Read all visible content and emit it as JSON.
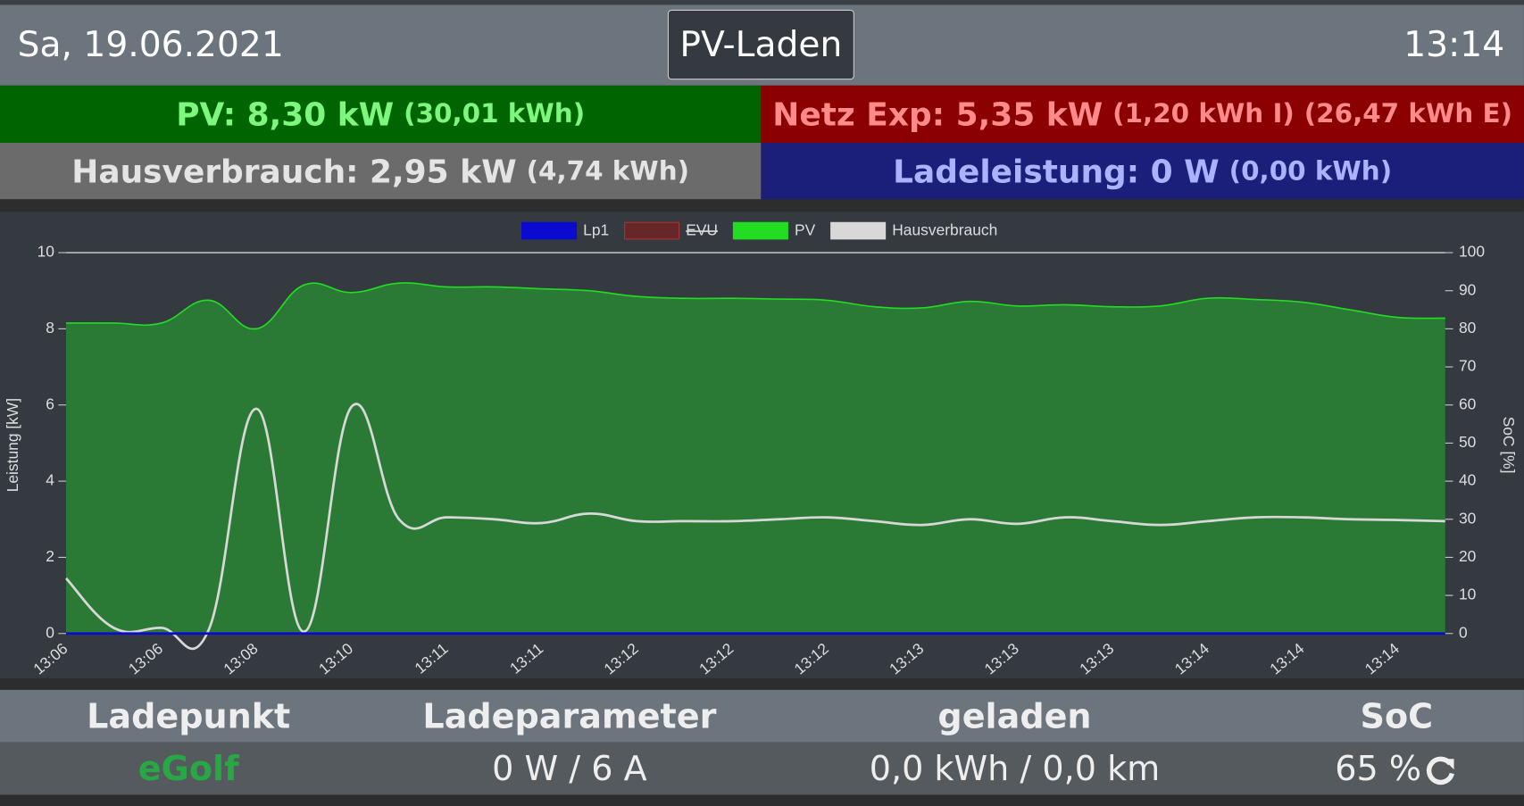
{
  "header": {
    "date": "Sa, 19.06.2021",
    "mode": "PV-Laden",
    "time": "13:14"
  },
  "tiles": {
    "pv": {
      "main": "PV: 8,30 kW",
      "details": [
        "(30,01 kWh)"
      ]
    },
    "grid": {
      "main": "Netz Exp: 5,35 kW",
      "details": [
        "(1,20 kWh I)",
        "(26,47 kWh E)"
      ]
    },
    "house": {
      "main": "Hausverbrauch: 2,95 kW",
      "details": [
        "(4,74 kWh)"
      ]
    },
    "charge": {
      "main": "Ladeleistung: 0 W",
      "details": [
        "(0,00 kWh)"
      ]
    }
  },
  "chart_data": {
    "type": "line",
    "y_label": "Leistung [kW]",
    "y2_label": "SoC [%]",
    "categories": [
      "13:06",
      null,
      "13:06",
      null,
      "13:08",
      null,
      "13:10",
      null,
      "13:11",
      null,
      "13:11",
      null,
      "13:12",
      null,
      "13:12",
      null,
      "13:12",
      null,
      "13:13",
      null,
      "13:13",
      null,
      "13:13",
      null,
      "13:14",
      null,
      "13:14",
      null,
      "13:14",
      null
    ],
    "series": [
      {
        "name": "Lp1",
        "color": "#0a0ad0",
        "values": [
          0,
          0,
          0,
          0,
          0,
          0,
          0,
          0,
          0,
          0,
          0,
          0,
          0,
          0,
          0,
          0,
          0,
          0,
          0,
          0,
          0,
          0,
          0,
          0,
          0,
          0,
          0,
          0,
          0,
          0
        ]
      },
      {
        "name": "EVU",
        "color": "#8b1a1a",
        "hidden": true
      },
      {
        "name": "PV",
        "color": "#22dd22",
        "fill_color": "#2a7a36",
        "values": [
          8.15,
          8.15,
          8.15,
          8.75,
          8.0,
          9.15,
          8.95,
          9.2,
          9.1,
          9.1,
          9.05,
          9.0,
          8.85,
          8.8,
          8.8,
          8.78,
          8.75,
          8.58,
          8.55,
          8.72,
          8.6,
          8.63,
          8.58,
          8.6,
          8.8,
          8.77,
          8.7,
          8.5,
          8.3,
          8.28
        ]
      },
      {
        "name": "Hausverbrauch",
        "color": "#d8d8d8",
        "values": [
          1.45,
          0.15,
          0.15,
          0.1,
          5.9,
          0.05,
          5.95,
          3.0,
          3.05,
          3.0,
          2.9,
          3.15,
          2.95,
          2.95,
          2.95,
          3.0,
          3.05,
          2.95,
          2.85,
          3.0,
          2.88,
          3.05,
          2.95,
          2.85,
          2.95,
          3.05,
          3.05,
          3.0,
          2.98,
          2.95
        ]
      }
    ],
    "ylim": [
      0,
      10
    ],
    "yticks": [
      0,
      2,
      4,
      6,
      8,
      10
    ],
    "y2lim": [
      0,
      100
    ],
    "y2ticks": [
      0,
      10,
      20,
      30,
      40,
      50,
      60,
      70,
      80,
      90,
      100
    ],
    "grid": true
  },
  "table": {
    "headers": [
      "Ladepunkt",
      "Ladeparameter",
      "geladen",
      "SoC"
    ],
    "rows": [
      [
        "eGolf",
        "0 W / 6 A",
        "0,0 kWh / 0,0 km",
        "65 %"
      ]
    ]
  }
}
